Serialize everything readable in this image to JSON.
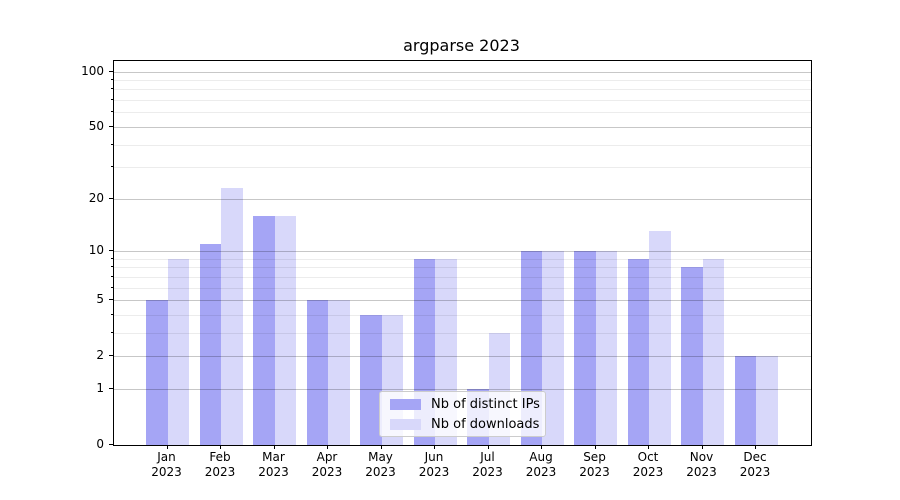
{
  "chart_data": {
    "type": "bar",
    "title": "argparse 2023",
    "categories": [
      "Jan",
      "Feb",
      "Mar",
      "Apr",
      "May",
      "Jun",
      "Jul",
      "Aug",
      "Sep",
      "Oct",
      "Nov",
      "Dec"
    ],
    "x_year_label": "2023",
    "series": [
      {
        "name": "Nb of distinct IPs",
        "color": "#a5a5f5",
        "values": [
          5,
          11,
          16,
          5,
          4,
          9,
          1,
          10,
          10,
          9,
          8,
          2
        ]
      },
      {
        "name": "Nb of downloads",
        "color": "#d8d8fa",
        "values": [
          9,
          23,
          16,
          5,
          4,
          9,
          3,
          10,
          10,
          13,
          9,
          2
        ]
      }
    ],
    "yscale": "log1p",
    "ylim": [
      0,
      114
    ],
    "y_major_ticks": [
      0,
      1,
      2,
      5,
      10,
      20,
      50,
      100
    ],
    "y_minor_ticks": [
      3,
      4,
      6,
      7,
      8,
      9,
      30,
      40,
      60,
      70,
      80,
      90
    ],
    "grid": true,
    "legend_position": "lower center",
    "axes_color": "#000000",
    "background_color": "#ffffff"
  }
}
